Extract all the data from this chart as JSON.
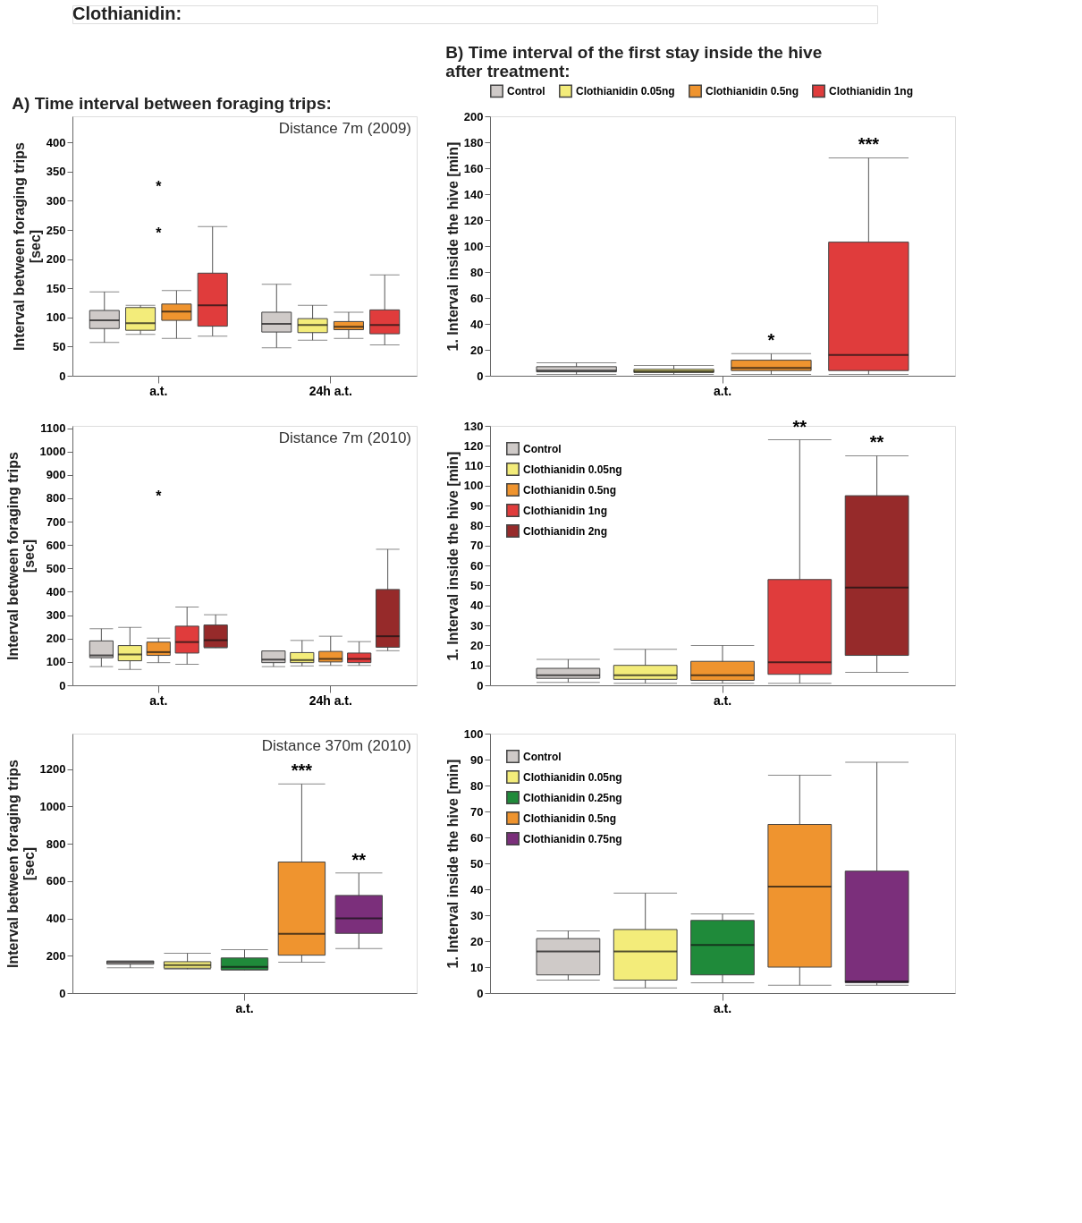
{
  "chart_data": [
    {
      "type": "other",
      "title": "Clothianidin:"
    },
    {
      "type": "box",
      "title": "A) Time interval between foraging trips:",
      "subtitle": "Distance 7m (2009)",
      "ylabel": "Interval between foraging trips\n[sec]",
      "categories": [
        "a.t.",
        "24h a.t."
      ],
      "ylim": [
        0,
        445
      ],
      "yticks": [
        0,
        50,
        100,
        150,
        200,
        250,
        300,
        350,
        400
      ],
      "grid": false,
      "legend": false,
      "series": [
        {
          "color": "#cfcac8",
          "boxes": [
            {
              "low": 57,
              "q1": 81,
              "median": 95,
              "q3": 112,
              "high": 144
            },
            {
              "low": 48,
              "q1": 75,
              "median": 89,
              "q3": 109,
              "high": 157
            }
          ]
        },
        {
          "color": "#f3ec7a",
          "boxes": [
            {
              "low": 71,
              "q1": 78,
              "median": 90,
              "q3": 117,
              "high": 121
            },
            {
              "low": 61,
              "q1": 74,
              "median": 87,
              "q3": 98,
              "high": 121
            }
          ]
        },
        {
          "color": "#ef942f",
          "boxes": [
            {
              "low": 64,
              "q1": 95,
              "median": 110,
              "q3": 123,
              "high": 146
            },
            {
              "low": 64,
              "q1": 79,
              "median": 84,
              "q3": 93,
              "high": 109
            }
          ]
        },
        {
          "color": "#e03c3c",
          "boxes": [
            {
              "low": 68,
              "q1": 85,
              "median": 121,
              "q3": 176,
              "high": 256
            },
            {
              "low": 53,
              "q1": 72,
              "median": 87,
              "q3": 113,
              "high": 173
            }
          ]
        }
      ],
      "annotations": [
        "*",
        "*"
      ]
    },
    {
      "type": "box",
      "title": "B) Time interval of the first stay inside the hive\nafter treatment:",
      "ylabel": "1. Interval inside the hive [min]",
      "categories": [
        "a.t."
      ],
      "ylim": [
        0,
        200
      ],
      "yticks": [
        0,
        20,
        40,
        60,
        80,
        100,
        120,
        140,
        160,
        180,
        200
      ],
      "grid": false,
      "legend": "top",
      "series": [
        {
          "name": "Control",
          "color": "#cfcac8",
          "boxes": [
            {
              "low": 1,
              "q1": 3,
              "median": 4,
              "q3": 7,
              "high": 10
            }
          ]
        },
        {
          "name": "Clothianidin 0.05ng",
          "color": "#f3ec7a",
          "boxes": [
            {
              "low": 1,
              "q1": 2.5,
              "median": 3.5,
              "q3": 5,
              "high": 8
            }
          ]
        },
        {
          "name": "Clothianidin 0.5ng",
          "color": "#ef942f",
          "boxes": [
            {
              "low": 1,
              "q1": 4,
              "median": 6,
              "q3": 12,
              "high": 17
            }
          ]
        },
        {
          "name": "Clothianidin 1ng",
          "color": "#e03c3c",
          "boxes": [
            {
              "low": 1,
              "q1": 4,
              "median": 16,
              "q3": 103,
              "high": 168
            }
          ]
        }
      ],
      "annotations": [
        "*",
        "***"
      ]
    },
    {
      "type": "box",
      "subtitle": "Distance 7m (2010)",
      "ylabel": "Interval between foraging trips\n[sec]",
      "categories": [
        "a.t.",
        "24h a.t."
      ],
      "ylim": [
        0,
        1110
      ],
      "yticks": [
        0,
        100,
        200,
        300,
        400,
        500,
        600,
        700,
        800,
        900,
        1000,
        1100
      ],
      "grid": false,
      "legend": false,
      "series": [
        {
          "color": "#cfcac8",
          "boxes": [
            {
              "low": 80,
              "q1": 118,
              "median": 128,
              "q3": 190,
              "high": 242
            },
            {
              "low": 80,
              "q1": 97,
              "median": 110,
              "q3": 147,
              "high": 147
            }
          ]
        },
        {
          "color": "#f3ec7a",
          "boxes": [
            {
              "low": 68,
              "q1": 105,
              "median": 132,
              "q3": 170,
              "high": 248
            },
            {
              "low": 83,
              "q1": 97,
              "median": 108,
              "q3": 140,
              "high": 192
            }
          ]
        },
        {
          "color": "#ef942f",
          "boxes": [
            {
              "low": 97,
              "q1": 128,
              "median": 142,
              "q3": 185,
              "high": 202
            },
            {
              "low": 85,
              "q1": 100,
              "median": 113,
              "q3": 145,
              "high": 210
            }
          ]
        },
        {
          "color": "#e03c3c",
          "boxes": [
            {
              "low": 90,
              "q1": 138,
              "median": 185,
              "q3": 253,
              "high": 335
            },
            {
              "low": 85,
              "q1": 97,
              "median": 113,
              "q3": 138,
              "high": 187
            }
          ]
        },
        {
          "color": "#962a2a",
          "boxes": [
            {
              "low": 160,
              "q1": 162,
              "median": 193,
              "q3": 258,
              "high": 302
            },
            {
              "low": 148,
              "q1": 163,
              "median": 210,
              "q3": 410,
              "high": 582
            }
          ]
        }
      ],
      "annotations": [
        "*"
      ]
    },
    {
      "type": "box",
      "ylabel": "1. Interval inside the hive [min]",
      "categories": [
        "a.t."
      ],
      "ylim": [
        0,
        130
      ],
      "yticks": [
        0,
        10,
        20,
        30,
        40,
        50,
        60,
        70,
        80,
        90,
        100,
        110,
        120,
        130
      ],
      "grid": false,
      "legend": "top left",
      "series": [
        {
          "name": "Control",
          "color": "#cfcac8",
          "boxes": [
            {
              "low": 1.5,
              "q1": 3.5,
              "median": 5,
              "q3": 8.5,
              "high": 13
            }
          ]
        },
        {
          "name": "Clothianidin 0.05ng",
          "color": "#f3ec7a",
          "boxes": [
            {
              "low": 1,
              "q1": 3,
              "median": 5,
              "q3": 10,
              "high": 18
            }
          ]
        },
        {
          "name": "Clothianidin 0.5ng",
          "color": "#ef942f",
          "boxes": [
            {
              "low": 1,
              "q1": 2.5,
              "median": 5,
              "q3": 12,
              "high": 20
            }
          ]
        },
        {
          "name": "Clothianidin 1ng",
          "color": "#e03c3c",
          "boxes": [
            {
              "low": 1,
              "q1": 5.5,
              "median": 11.5,
              "q3": 53,
              "high": 123
            }
          ]
        },
        {
          "name": "Clothianidin 2ng",
          "color": "#962a2a",
          "boxes": [
            {
              "low": 6.5,
              "q1": 15,
              "median": 49,
              "q3": 95,
              "high": 115
            }
          ]
        }
      ],
      "annotations": [
        "**",
        "**"
      ]
    },
    {
      "type": "box",
      "subtitle": "Distance 370m (2010)",
      "ylabel": "Interval between foraging trips\n[sec]",
      "categories": [
        "a.t."
      ],
      "ylim": [
        0,
        1390
      ],
      "yticks": [
        0,
        200,
        400,
        600,
        800,
        1000,
        1200
      ],
      "grid": false,
      "legend": false,
      "series": [
        {
          "color": "#cfcac8",
          "boxes": [
            {
              "low": 135,
              "q1": 155,
              "median": 165,
              "q3": 172,
              "high": 172
            }
          ]
        },
        {
          "color": "#f3ec7a",
          "boxes": [
            {
              "low": 128,
              "q1": 133,
              "median": 150,
              "q3": 168,
              "high": 213
            }
          ]
        },
        {
          "color": "#1f8a3a",
          "boxes": [
            {
              "low": 122,
              "q1": 125,
              "median": 140,
              "q3": 188,
              "high": 233
            }
          ]
        },
        {
          "color": "#ef942f",
          "boxes": [
            {
              "low": 165,
              "q1": 203,
              "median": 318,
              "q3": 702,
              "high": 1120
            }
          ]
        },
        {
          "color": "#7b2f7b",
          "boxes": [
            {
              "low": 238,
              "q1": 320,
              "median": 400,
              "q3": 523,
              "high": 643
            }
          ]
        }
      ],
      "annotations": [
        "***",
        "**"
      ]
    },
    {
      "type": "box",
      "ylabel": "1. Interval inside the hive [min]",
      "categories": [
        "a.t."
      ],
      "ylim": [
        0,
        100
      ],
      "yticks": [
        0,
        10,
        20,
        30,
        40,
        50,
        60,
        70,
        80,
        90,
        100
      ],
      "grid": false,
      "legend": "top left",
      "series": [
        {
          "name": "Control",
          "color": "#cfcac8",
          "boxes": [
            {
              "low": 5,
              "q1": 7,
              "median": 16,
              "q3": 21,
              "high": 24
            }
          ]
        },
        {
          "name": "Clothianidin 0.05ng",
          "color": "#f3ec7a",
          "boxes": [
            {
              "low": 2,
              "q1": 5,
              "median": 16,
              "q3": 24.5,
              "high": 38.5
            }
          ]
        },
        {
          "name": "Clothianidin 0.25ng",
          "color": "#1f8a3a",
          "boxes": [
            {
              "low": 4,
              "q1": 7,
              "median": 18.5,
              "q3": 28,
              "high": 30.5
            }
          ]
        },
        {
          "name": "Clothianidin 0.5ng",
          "color": "#ef942f",
          "boxes": [
            {
              "low": 3,
              "q1": 10,
              "median": 41,
              "q3": 65,
              "high": 84
            }
          ]
        },
        {
          "name": "Clothianidin 0.75ng",
          "color": "#7b2f7b",
          "boxes": [
            {
              "low": 3,
              "q1": 4,
              "median": 4.5,
              "q3": 47,
              "high": 89
            }
          ]
        }
      ]
    }
  ]
}
